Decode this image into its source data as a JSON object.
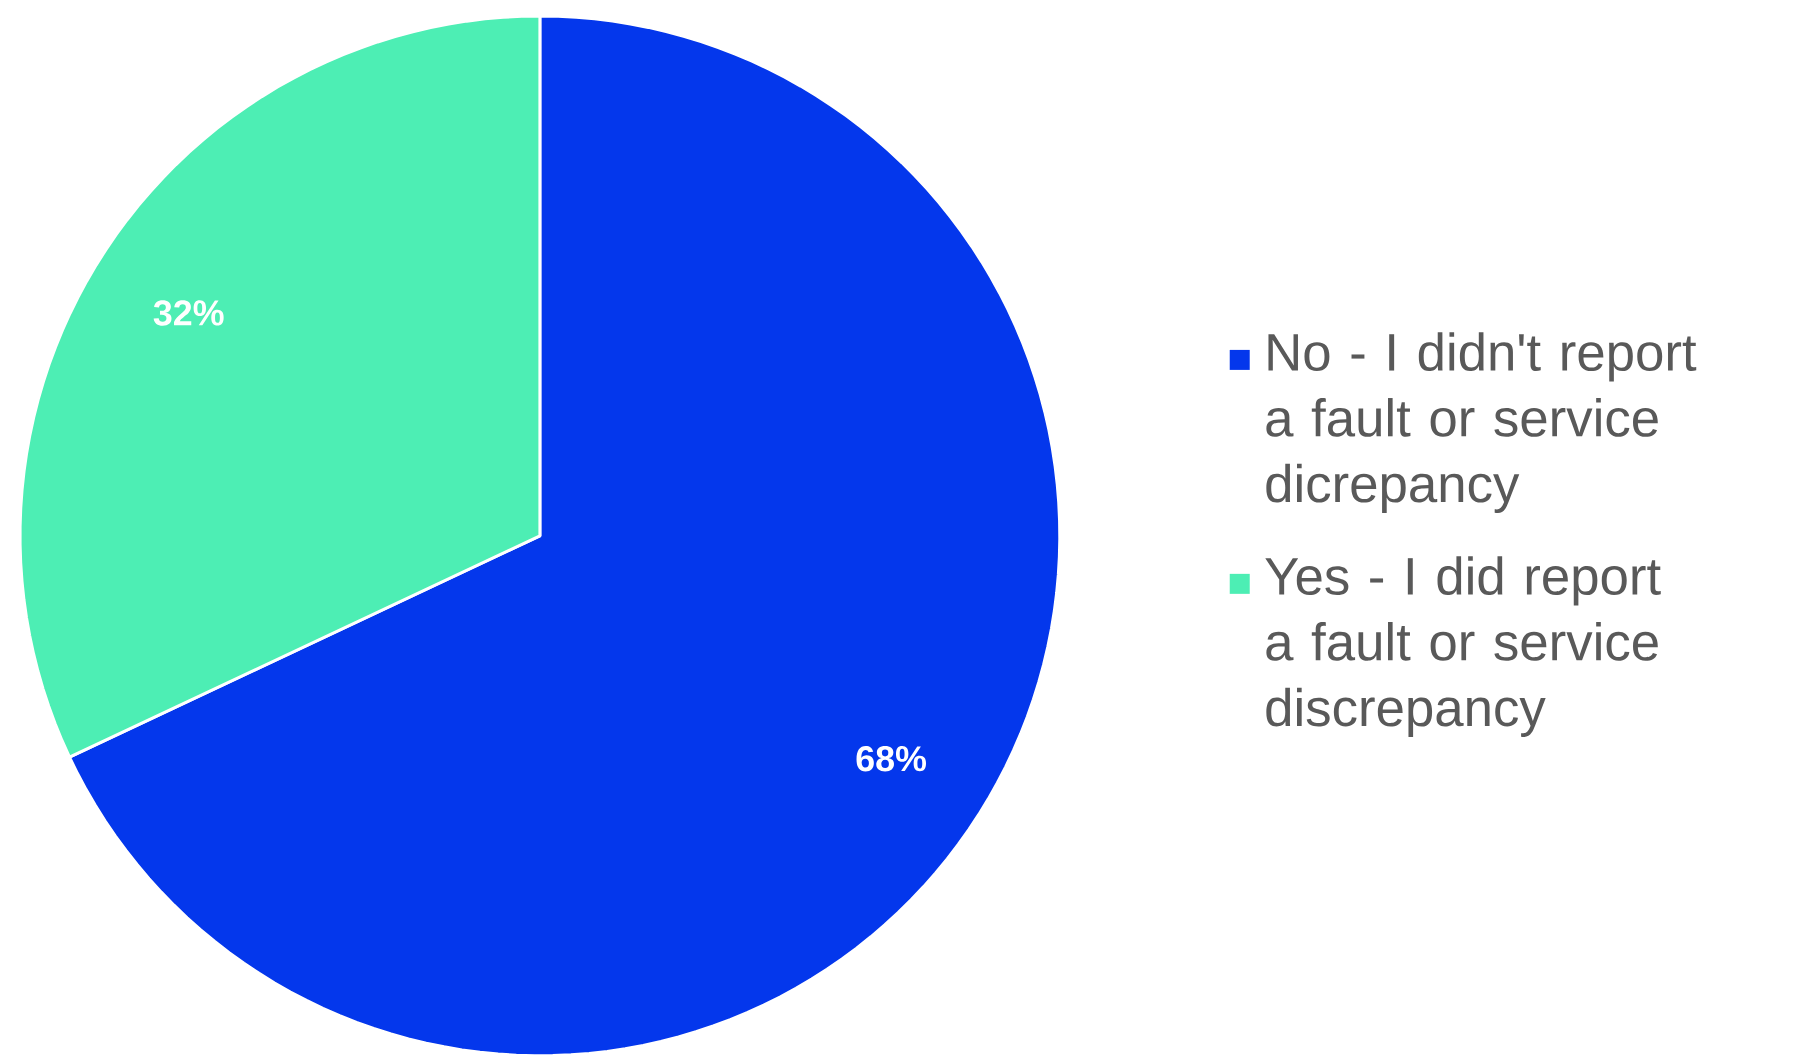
{
  "chart_data": {
    "type": "pie",
    "categories": [
      "No - I didn't report a fault or service dicrepancy",
      "Yes - I did report a fault or service discrepancy"
    ],
    "values": [
      68,
      32
    ],
    "colors": [
      "#0437ec",
      "#4deeb4"
    ],
    "value_labels": [
      "68%",
      "32%"
    ],
    "legend": "right"
  }
}
